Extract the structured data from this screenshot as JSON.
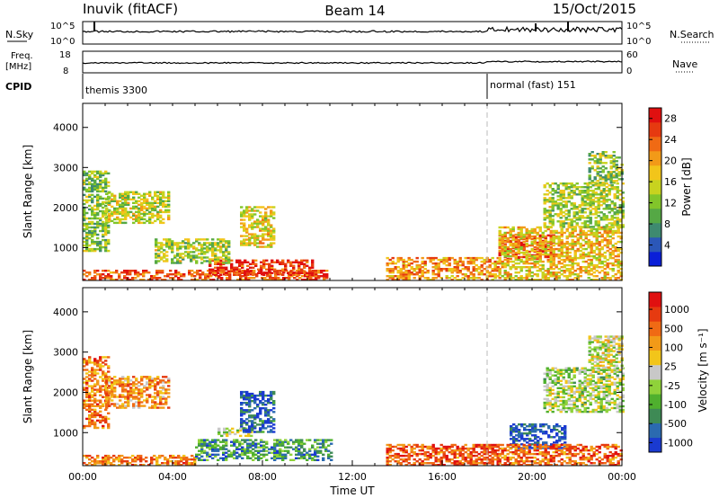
{
  "header": {
    "station": "Inuvik (fitACF)",
    "beam": "Beam 14",
    "date": "15/Oct/2015"
  },
  "aux_panels": {
    "nsky_label": "N.Sky",
    "nsky_ticks": [
      "10^5",
      "10^0"
    ],
    "nsearch_label": "N.Search",
    "nsearch_ticks": [
      "10^5",
      "10^0"
    ],
    "freq_label": "Freq.",
    "freq_unit": "[MHz]",
    "freq_ticks": [
      "18",
      "8"
    ],
    "nave_label": "Nave",
    "nave_ticks": [
      "60",
      "0"
    ],
    "cpid_label": "CPID",
    "cpid_modes": [
      {
        "name": "themis 3300",
        "start_hour": 0
      },
      {
        "name": "normal (fast) 151",
        "start_hour": 18
      }
    ]
  },
  "chart_data": [
    {
      "type": "heatmap",
      "name": "power-panel",
      "ylabel": "Slant Range [km]",
      "y_ticks": [
        "1000",
        "2000",
        "3000",
        "4000"
      ],
      "ylim": [
        180,
        4600
      ],
      "xlim": [
        0,
        24
      ],
      "colorbar": {
        "label": "Power [dB]",
        "ticks": [
          "4",
          "8",
          "12",
          "16",
          "20",
          "24",
          "28"
        ],
        "range": [
          0,
          30
        ],
        "colors": [
          "#0a1fd8",
          "#2b57b8",
          "#3e8a70",
          "#55a845",
          "#82c52a",
          "#c8d31f",
          "#f2c51a",
          "#f29a18",
          "#f06a14",
          "#e63a10",
          "#e01010"
        ]
      },
      "regions": [
        {
          "t0": 0.0,
          "t1": 10.8,
          "r0": 180,
          "r1": 420,
          "level": 0.82
        },
        {
          "t0": 5.6,
          "t1": 10.2,
          "r0": 300,
          "r1": 700,
          "level": 0.9
        },
        {
          "t0": 3.2,
          "t1": 6.5,
          "r0": 600,
          "r1": 1200,
          "level": 0.45
        },
        {
          "t0": 0.0,
          "t1": 1.2,
          "r0": 900,
          "r1": 2900,
          "level": 0.4
        },
        {
          "t0": 1.0,
          "t1": 3.8,
          "r0": 1600,
          "r1": 2400,
          "level": 0.5
        },
        {
          "t0": 7.0,
          "t1": 8.5,
          "r0": 1000,
          "r1": 2000,
          "level": 0.55
        },
        {
          "t0": 13.5,
          "t1": 18.5,
          "r0": 180,
          "r1": 750,
          "level": 0.7
        },
        {
          "t0": 18.5,
          "t1": 21.0,
          "r0": 700,
          "r1": 1300,
          "level": 0.92
        },
        {
          "t0": 18.5,
          "t1": 24.0,
          "r0": 180,
          "r1": 1500,
          "level": 0.6
        },
        {
          "t0": 20.5,
          "t1": 24.0,
          "r0": 1500,
          "r1": 2600,
          "level": 0.45
        },
        {
          "t0": 22.5,
          "t1": 24.0,
          "r0": 2600,
          "r1": 3400,
          "level": 0.4
        }
      ]
    },
    {
      "type": "heatmap",
      "name": "velocity-panel",
      "xlabel": "Time UT",
      "ylabel": "Slant Range [km]",
      "x_ticks": [
        "00:00",
        "04:00",
        "08:00",
        "12:00",
        "16:00",
        "20:00",
        "00:00"
      ],
      "y_ticks": [
        "1000",
        "2000",
        "3000",
        "4000"
      ],
      "ylim": [
        180,
        4600
      ],
      "xlim": [
        0,
        24
      ],
      "colorbar": {
        "label": "Velocity [m s⁻¹]",
        "ticks": [
          "1000",
          "500",
          "100",
          "25",
          "-25",
          "-100",
          "-500",
          "-1000"
        ],
        "colors": [
          "#1a3ad0",
          "#2b6ab0",
          "#3e8a55",
          "#4fb02e",
          "#8fd23a",
          "#c8c8c8",
          "#f2c51a",
          "#f29a18",
          "#f06a14",
          "#e63a10",
          "#e01010"
        ]
      },
      "regions": [
        {
          "t0": 0.0,
          "t1": 5.0,
          "r0": 180,
          "r1": 420,
          "level": 0.75
        },
        {
          "t0": 5.0,
          "t1": 11.0,
          "r0": 300,
          "r1": 800,
          "level": 0.25
        },
        {
          "t0": 6.0,
          "t1": 7.5,
          "r0": 900,
          "r1": 1100,
          "level": 0.45
        },
        {
          "t0": 0.0,
          "t1": 1.2,
          "r0": 1100,
          "r1": 2900,
          "level": 0.75
        },
        {
          "t0": 1.0,
          "t1": 3.8,
          "r0": 1600,
          "r1": 2400,
          "level": 0.7
        },
        {
          "t0": 7.0,
          "t1": 8.5,
          "r0": 1000,
          "r1": 2000,
          "level": 0.1
        },
        {
          "t0": 13.5,
          "t1": 18.5,
          "r0": 180,
          "r1": 700,
          "level": 0.82
        },
        {
          "t0": 19.0,
          "t1": 21.5,
          "r0": 600,
          "r1": 1200,
          "level": 0.05
        },
        {
          "t0": 18.5,
          "t1": 24.0,
          "r0": 180,
          "r1": 700,
          "level": 0.78
        },
        {
          "t0": 20.5,
          "t1": 24.0,
          "r0": 1500,
          "r1": 2600,
          "level": 0.45
        },
        {
          "t0": 22.5,
          "t1": 24.0,
          "r0": 2600,
          "r1": 3400,
          "level": 0.5
        }
      ]
    }
  ]
}
